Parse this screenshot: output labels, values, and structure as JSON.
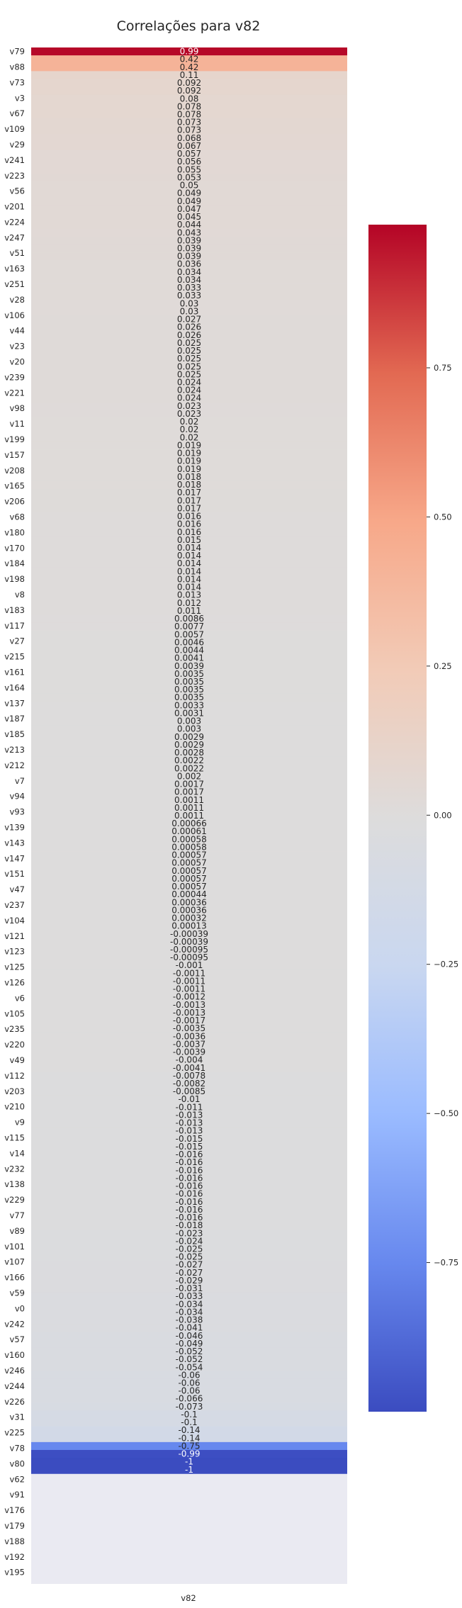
{
  "chart_data": {
    "type": "heatmap",
    "title": "Correlações para v82",
    "x_categories": [
      "v82"
    ],
    "y_tick_labels": [
      "v79",
      "v88",
      "v73",
      "v3",
      "v67",
      "v109",
      "v29",
      "v241",
      "v223",
      "v56",
      "v201",
      "v224",
      "v247",
      "v51",
      "v163",
      "v251",
      "v28",
      "v106",
      "v44",
      "v23",
      "v20",
      "v239",
      "v221",
      "v98",
      "v11",
      "v199",
      "v157",
      "v208",
      "v165",
      "v206",
      "v68",
      "v180",
      "v170",
      "v184",
      "v198",
      "v8",
      "v183",
      "v117",
      "v27",
      "v215",
      "v161",
      "v164",
      "v137",
      "v187",
      "v185",
      "v213",
      "v212",
      "v7",
      "v94",
      "v93",
      "v139",
      "v143",
      "v147",
      "v151",
      "v47",
      "v237",
      "v104",
      "v121",
      "v123",
      "v125",
      "v126",
      "v6",
      "v105",
      "v235",
      "v220",
      "v49",
      "v112",
      "v203",
      "v210",
      "v9",
      "v115",
      "v14",
      "v232",
      "v138",
      "v229",
      "v77",
      "v89",
      "v101",
      "v107",
      "v166",
      "v59",
      "v0",
      "v242",
      "v57",
      "v160",
      "v246",
      "v244",
      "v226",
      "v31",
      "v225",
      "v78",
      "v80",
      "v62",
      "v91",
      "v176",
      "v179",
      "v188",
      "v192",
      "v195"
    ],
    "values": [
      0.99,
      0.42,
      0.42,
      0.11,
      0.092,
      0.092,
      0.08,
      0.078,
      0.078,
      0.073,
      0.073,
      0.068,
      0.067,
      0.057,
      0.056,
      0.055,
      0.053,
      0.05,
      0.049,
      0.049,
      0.047,
      0.045,
      0.044,
      0.043,
      0.039,
      0.039,
      0.039,
      0.036,
      0.034,
      0.034,
      0.033,
      0.033,
      0.03,
      0.03,
      0.027,
      0.026,
      0.026,
      0.025,
      0.025,
      0.025,
      0.025,
      0.025,
      0.024,
      0.024,
      0.024,
      0.023,
      0.023,
      0.02,
      0.02,
      0.02,
      0.019,
      0.019,
      0.019,
      0.019,
      0.018,
      0.018,
      0.017,
      0.017,
      0.017,
      0.016,
      0.016,
      0.016,
      0.015,
      0.014,
      0.014,
      0.014,
      0.014,
      0.014,
      0.014,
      0.013,
      0.012,
      0.011,
      0.0086,
      0.0077,
      0.0057,
      0.0046,
      0.0044,
      0.0041,
      0.0039,
      0.0035,
      0.0035,
      0.0035,
      0.0035,
      0.0033,
      0.0031,
      0.003,
      0.003,
      0.0029,
      0.0029,
      0.0028,
      0.0022,
      0.0022,
      0.002,
      0.0017,
      0.0017,
      0.0011,
      0.0011,
      0.0011,
      0.00066,
      0.00061,
      0.00058,
      0.00058,
      0.00057,
      0.00057,
      0.00057,
      0.00057,
      0.00057,
      0.00044,
      0.00036,
      0.00036,
      0.00032,
      0.00013,
      -0.00039,
      -0.00039,
      -0.00095,
      -0.00095,
      -0.001,
      -0.0011,
      -0.0011,
      -0.0011,
      -0.0012,
      -0.0013,
      -0.0013,
      -0.0017,
      -0.0035,
      -0.0036,
      -0.0037,
      -0.0039,
      -0.004,
      -0.0041,
      -0.0078,
      -0.0082,
      -0.0085,
      -0.01,
      -0.011,
      -0.013,
      -0.013,
      -0.013,
      -0.015,
      -0.015,
      -0.016,
      -0.016,
      -0.016,
      -0.016,
      -0.016,
      -0.016,
      -0.016,
      -0.016,
      -0.016,
      -0.018,
      -0.023,
      -0.024,
      -0.025,
      -0.025,
      -0.027,
      -0.027,
      -0.029,
      -0.031,
      -0.033,
      -0.034,
      -0.034,
      -0.038,
      -0.041,
      -0.046,
      -0.049,
      -0.052,
      -0.052,
      -0.054,
      -0.06,
      -0.06,
      -0.06,
      -0.066,
      -0.073,
      -0.1,
      -0.1,
      -0.14,
      -0.14,
      -0.75,
      -0.99,
      -1,
      -1
    ],
    "value_labels": [
      "0.99",
      "0.42",
      "0.42",
      "0.11",
      "0.092",
      "0.092",
      "0.08",
      "0.078",
      "0.078",
      "0.073",
      "0.073",
      "0.068",
      "0.067",
      "0.057",
      "0.056",
      "0.055",
      "0.053",
      "0.05",
      "0.049",
      "0.049",
      "0.047",
      "0.045",
      "0.044",
      "0.043",
      "0.039",
      "0.039",
      "0.039",
      "0.036",
      "0.034",
      "0.034",
      "0.033",
      "0.033",
      "0.03",
      "0.03",
      "0.027",
      "0.026",
      "0.026",
      "0.025",
      "0.025",
      "0.025",
      "0.025",
      "0.025",
      "0.024",
      "0.024",
      "0.024",
      "0.023",
      "0.023",
      "0.02",
      "0.02",
      "0.02",
      "0.019",
      "0.019",
      "0.019",
      "0.019",
      "0.018",
      "0.018",
      "0.017",
      "0.017",
      "0.017",
      "0.016",
      "0.016",
      "0.016",
      "0.015",
      "0.014",
      "0.014",
      "0.014",
      "0.014",
      "0.014",
      "0.014",
      "0.013",
      "0.012",
      "0.011",
      "0.0086",
      "0.0077",
      "0.0057",
      "0.0046",
      "0.0044",
      "0.0041",
      "0.0039",
      "0.0035",
      "0.0035",
      "0.0035",
      "0.0035",
      "0.0033",
      "0.0031",
      "0.003",
      "0.003",
      "0.0029",
      "0.0029",
      "0.0028",
      "0.0022",
      "0.0022",
      "0.002",
      "0.0017",
      "0.0017",
      "0.0011",
      "0.0011",
      "0.0011",
      "0.00066",
      "0.00061",
      "0.00058",
      "0.00058",
      "0.00057",
      "0.00057",
      "0.00057",
      "0.00057",
      "0.00057",
      "0.00044",
      "0.00036",
      "0.00036",
      "0.00032",
      "0.00013",
      "-0.00039",
      "-0.00039",
      "-0.00095",
      "-0.00095",
      "-0.001",
      "-0.0011",
      "-0.0011",
      "-0.0011",
      "-0.0012",
      "-0.0013",
      "-0.0013",
      "-0.0017",
      "-0.0035",
      "-0.0036",
      "-0.0037",
      "-0.0039",
      "-0.004",
      "-0.0041",
      "-0.0078",
      "-0.0082",
      "-0.0085",
      "-0.01",
      "-0.011",
      "-0.013",
      "-0.013",
      "-0.013",
      "-0.015",
      "-0.015",
      "-0.016",
      "-0.016",
      "-0.016",
      "-0.016",
      "-0.016",
      "-0.016",
      "-0.016",
      "-0.016",
      "-0.016",
      "-0.018",
      "-0.023",
      "-0.024",
      "-0.025",
      "-0.025",
      "-0.027",
      "-0.027",
      "-0.029",
      "-0.031",
      "-0.033",
      "-0.034",
      "-0.034",
      "-0.038",
      "-0.041",
      "-0.046",
      "-0.049",
      "-0.052",
      "-0.052",
      "-0.054",
      "-0.06",
      "-0.06",
      "-0.06",
      "-0.066",
      "-0.073",
      "-0.1",
      "-0.1",
      "-0.14",
      "-0.14",
      "-0.75",
      "-0.99",
      "-1",
      "-1"
    ],
    "empty_rows": 14,
    "colormap": "coolwarm",
    "colorscale_stops": [
      "#3b4cc0",
      "#6788ee",
      "#9abbff",
      "#c9d7f0",
      "#dddcdc",
      "#f2cbb7",
      "#f7a889",
      "#e26952",
      "#b40426"
    ],
    "vmin": -1,
    "vmax": 1,
    "colorbar_ticks": [
      "0.75",
      "0.50",
      "0.25",
      "0.00",
      "−0.25",
      "−0.50",
      "−0.75"
    ],
    "colorbar_tick_values": [
      0.75,
      0.5,
      0.25,
      0,
      -0.25,
      -0.5,
      -0.75
    ],
    "empty_cell_color": "#eaeaf2",
    "grid": false
  }
}
